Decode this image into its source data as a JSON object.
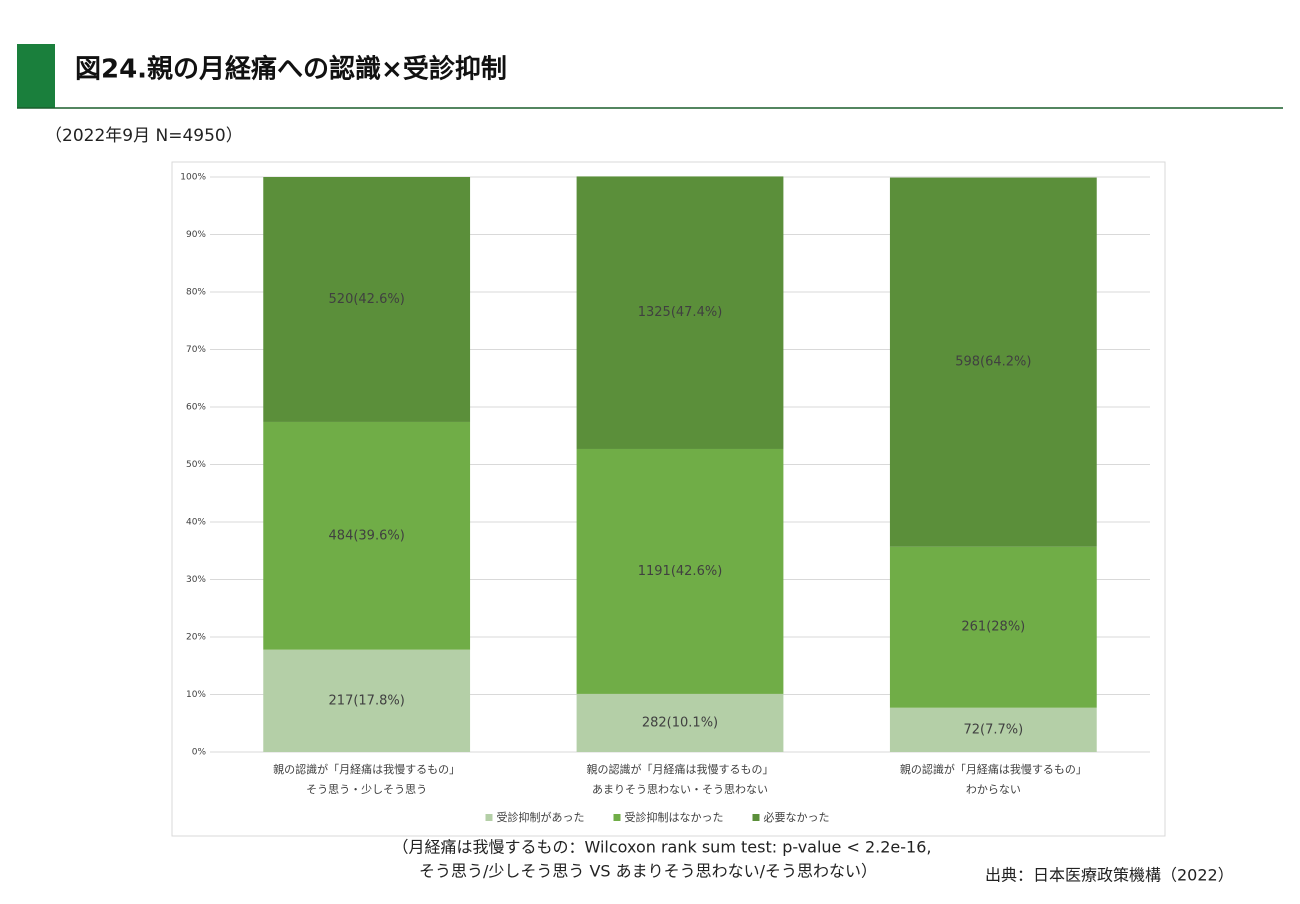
{
  "chart_data": {
    "type": "stacked-bar-100",
    "title": "図24.親の月経痛への認識×受診抑制",
    "subtitle": "（2022年9月 N=4950）",
    "categories": [
      [
        "親の認識が「月経痛は我慢するもの」",
        "そう思う・少しそう思う"
      ],
      [
        "親の認識が「月経痛は我慢するもの」",
        "あまりそう思わない・そう思わない"
      ],
      [
        "親の認識が「月経痛は我慢するもの」",
        "わからない"
      ]
    ],
    "series": [
      {
        "name": "受診抑制があった",
        "color": "#b4cfa7",
        "values": [
          17.8,
          10.1,
          7.7
        ],
        "value_labels": [
          "217(17.8%)",
          "282(10.1%)",
          "72(7.7%)"
        ]
      },
      {
        "name": "受診抑制はなかった",
        "color": "#70ad47",
        "values": [
          39.6,
          42.6,
          28
        ],
        "value_labels": [
          "484(39.6%)",
          "1191(42.6%)",
          "261(28%)"
        ]
      },
      {
        "name": "必要なかった",
        "color": "#5b8f3a",
        "values": [
          42.6,
          47.4,
          64.2
        ],
        "value_labels": [
          "520(42.6%)",
          "1325(47.4%)",
          "598(64.2%)"
        ]
      }
    ],
    "ylim": [
      0,
      100
    ],
    "yticks": [
      {
        "value": 0,
        "label": "0%"
      },
      {
        "value": 10,
        "label": "10%"
      },
      {
        "value": 20,
        "label": "20%"
      },
      {
        "value": 30,
        "label": "30%"
      },
      {
        "value": 40,
        "label": "40%"
      },
      {
        "value": 50,
        "label": "50%"
      },
      {
        "value": 60,
        "label": "60%"
      },
      {
        "value": 70,
        "label": "70%"
      },
      {
        "value": 80,
        "label": "80%"
      },
      {
        "value": 90,
        "label": "90%"
      },
      {
        "value": 100,
        "label": "100%"
      }
    ],
    "grid": true,
    "legend": "bottom",
    "notes": [
      "（月経痛は我慢するもの：Wilcoxon rank sum test: p-value < 2.2e-16,",
      "そう思う/少しそう思う VS あまりそう思わない/そう思わない）"
    ],
    "source": "出典：日本医療政策機構（2022）"
  }
}
